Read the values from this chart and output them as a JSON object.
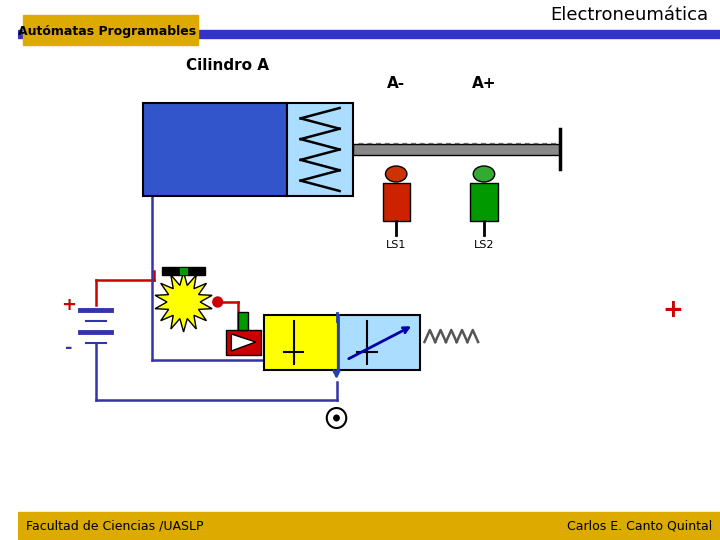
{
  "title": "Electroneumática",
  "subtitle": "Autómatas Programables",
  "cylinder_label": "Cilindro A",
  "label_A_minus": "A-",
  "label_A_plus": "A+",
  "label_LS1": "LS1",
  "label_LS2": "LS2",
  "label_plus_left": "+",
  "label_minus_left": "-",
  "label_plus_right": "+",
  "footer_left": "Facultad de Ciencias /UASLP",
  "footer_right": "Carlos E. Canto Quintal",
  "bg_color": "#ffffff",
  "header_bar_color": "#3333cc",
  "header_yellow": "#ddaa00",
  "footer_bar_color": "#ddaa00",
  "cylinder_body_color": "#3355cc",
  "cylinder_spring_bg": "#aaddff",
  "piston_rod_color": "#888888",
  "sensor_red_color": "#cc2200",
  "sensor_green_color": "#009900",
  "wire_color": "#3333aa",
  "wire_color_red": "#cc0000",
  "valve_yellow": "#ffff00",
  "valve_blue": "#aaddff",
  "spring_color": "#555555",
  "solenoid_red": "#cc0000",
  "solenoid_green": "#009900",
  "explosion_color": "#ffff00",
  "dot_color": "#cc0000",
  "plus_color": "#cc0000",
  "minus_color": "#3333aa",
  "battery_color": "#3333aa"
}
